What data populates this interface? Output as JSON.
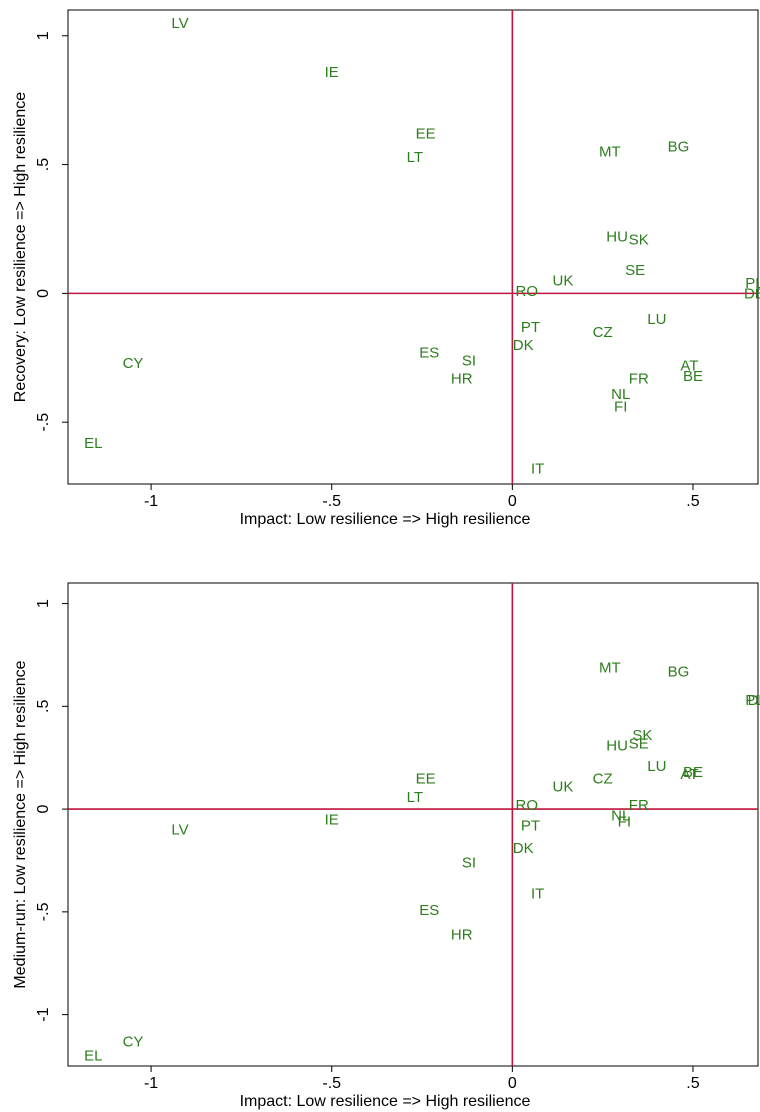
{
  "chart_data": [
    {
      "type": "scatter",
      "xlabel": "Impact: Low resilience => High resilience",
      "ylabel": "Recovery: Low resilience => High resilience",
      "xlim": [
        -1.23,
        0.68
      ],
      "ylim": [
        -0.74,
        1.1
      ],
      "xticks": [
        -1,
        -0.5,
        0,
        0.5
      ],
      "xtick_labels": [
        "-1",
        "-.5",
        "0",
        ".5"
      ],
      "yticks": [
        1,
        0.5,
        0,
        -0.5
      ],
      "ytick_labels": [
        "1",
        ".5",
        "0",
        "-.5"
      ],
      "reference_lines": {
        "x": 0,
        "y": 0
      },
      "grid": false,
      "point_color": "#2e7d1e",
      "line_color": "#c0143c",
      "points": [
        {
          "label": "LV",
          "x": -0.92,
          "y": 1.05
        },
        {
          "label": "IE",
          "x": -0.5,
          "y": 0.86
        },
        {
          "label": "EE",
          "x": -0.24,
          "y": 0.62
        },
        {
          "label": "LT",
          "x": -0.27,
          "y": 0.53
        },
        {
          "label": "MT",
          "x": 0.27,
          "y": 0.55
        },
        {
          "label": "BG",
          "x": 0.46,
          "y": 0.57
        },
        {
          "label": "HU",
          "x": 0.29,
          "y": 0.22
        },
        {
          "label": "SK",
          "x": 0.35,
          "y": 0.21
        },
        {
          "label": "SE",
          "x": 0.34,
          "y": 0.09
        },
        {
          "label": "UK",
          "x": 0.14,
          "y": 0.05
        },
        {
          "label": "RO",
          "x": 0.04,
          "y": 0.01
        },
        {
          "label": "PL",
          "x": 0.67,
          "y": 0.04
        },
        {
          "label": "DE",
          "x": 0.67,
          "y": 0.0
        },
        {
          "label": "LU",
          "x": 0.4,
          "y": -0.1
        },
        {
          "label": "PT",
          "x": 0.05,
          "y": -0.13
        },
        {
          "label": "CZ",
          "x": 0.25,
          "y": -0.15
        },
        {
          "label": "DK",
          "x": 0.03,
          "y": -0.2
        },
        {
          "label": "ES",
          "x": -0.23,
          "y": -0.23
        },
        {
          "label": "SI",
          "x": -0.12,
          "y": -0.26
        },
        {
          "label": "CY",
          "x": -1.05,
          "y": -0.27
        },
        {
          "label": "HR",
          "x": -0.14,
          "y": -0.33
        },
        {
          "label": "AT",
          "x": 0.49,
          "y": -0.28
        },
        {
          "label": "BE",
          "x": 0.5,
          "y": -0.32
        },
        {
          "label": "FR",
          "x": 0.35,
          "y": -0.33
        },
        {
          "label": "NL",
          "x": 0.3,
          "y": -0.39
        },
        {
          "label": "FI",
          "x": 0.3,
          "y": -0.44
        },
        {
          "label": "EL",
          "x": -1.16,
          "y": -0.58
        },
        {
          "label": "IT",
          "x": 0.07,
          "y": -0.68
        }
      ]
    },
    {
      "type": "scatter",
      "xlabel": "Impact: Low resilience => High resilience",
      "ylabel": "Medium-run: Low resilience => High resilience",
      "xlim": [
        -1.23,
        0.68
      ],
      "ylim": [
        -1.25,
        1.1
      ],
      "xticks": [
        -1,
        -0.5,
        0,
        0.5
      ],
      "xtick_labels": [
        "-1",
        "-.5",
        "0",
        ".5"
      ],
      "yticks": [
        1,
        0.5,
        0,
        -0.5,
        -1
      ],
      "ytick_labels": [
        "1",
        ".5",
        "0",
        "-.5",
        "-1"
      ],
      "reference_lines": {
        "x": 0,
        "y": 0
      },
      "grid": false,
      "point_color": "#2e7d1e",
      "line_color": "#c0143c",
      "points": [
        {
          "label": "MT",
          "x": 0.27,
          "y": 0.69
        },
        {
          "label": "BG",
          "x": 0.46,
          "y": 0.67
        },
        {
          "label": "PL",
          "x": 0.67,
          "y": 0.53
        },
        {
          "label": "DE",
          "x": 0.68,
          "y": 0.53
        },
        {
          "label": "SK",
          "x": 0.36,
          "y": 0.36
        },
        {
          "label": "SE",
          "x": 0.35,
          "y": 0.32
        },
        {
          "label": "HU",
          "x": 0.29,
          "y": 0.31
        },
        {
          "label": "LU",
          "x": 0.4,
          "y": 0.21
        },
        {
          "label": "AT",
          "x": 0.49,
          "y": 0.17
        },
        {
          "label": "BE",
          "x": 0.5,
          "y": 0.18
        },
        {
          "label": "CZ",
          "x": 0.25,
          "y": 0.15
        },
        {
          "label": "UK",
          "x": 0.14,
          "y": 0.11
        },
        {
          "label": "EE",
          "x": -0.24,
          "y": 0.15
        },
        {
          "label": "LT",
          "x": -0.27,
          "y": 0.06
        },
        {
          "label": "RO",
          "x": 0.04,
          "y": 0.02
        },
        {
          "label": "FR",
          "x": 0.35,
          "y": 0.02
        },
        {
          "label": "IE",
          "x": -0.5,
          "y": -0.05
        },
        {
          "label": "NL",
          "x": 0.3,
          "y": -0.03
        },
        {
          "label": "FI",
          "x": 0.31,
          "y": -0.06
        },
        {
          "label": "PT",
          "x": 0.05,
          "y": -0.08
        },
        {
          "label": "LV",
          "x": -0.92,
          "y": -0.1
        },
        {
          "label": "DK",
          "x": 0.03,
          "y": -0.19
        },
        {
          "label": "SI",
          "x": -0.12,
          "y": -0.26
        },
        {
          "label": "IT",
          "x": 0.07,
          "y": -0.41
        },
        {
          "label": "ES",
          "x": -0.23,
          "y": -0.49
        },
        {
          "label": "HR",
          "x": -0.14,
          "y": -0.61
        },
        {
          "label": "CY",
          "x": -1.05,
          "y": -1.13
        },
        {
          "label": "EL",
          "x": -1.16,
          "y": -1.2
        }
      ]
    }
  ]
}
